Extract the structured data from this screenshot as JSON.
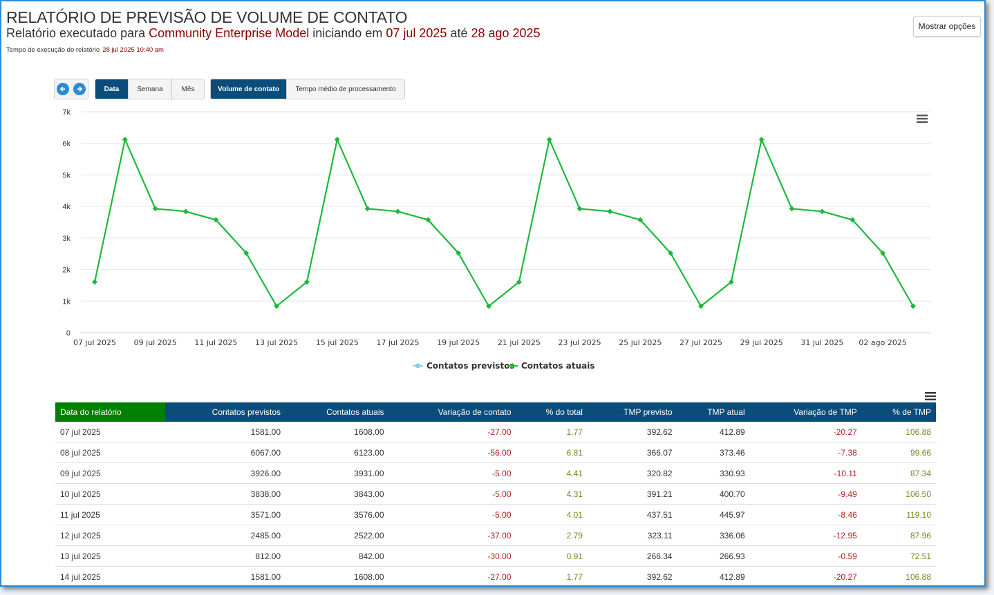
{
  "header": {
    "title": "RELATÓRIO DE PREVISÃO DE VOLUME DE CONTATO",
    "subtitle_prefix": "Relatório executado para",
    "model": "Community Enterprise Model",
    "subtitle_mid": "iniciando em",
    "start_date": "07 jul 2025",
    "subtitle_until": "até",
    "end_date": "28 ago 2025",
    "exec_label": "Tempo de execução do relatório",
    "exec_time": "28 jul 2025 10:40 am",
    "options_button": "Mostrar opções"
  },
  "controls": {
    "prev_icon": "arrow-left-icon",
    "next_icon": "arrow-right-icon",
    "granularity": [
      "Data",
      "Semana",
      "Mês"
    ],
    "granularity_selected": "Data",
    "metrics": [
      "Volume de contato",
      "Tempo médio de processamento"
    ],
    "metric_selected": "Volume de contato"
  },
  "colors": {
    "accent": "#0a4d7a",
    "first_header": "#008000",
    "series_actual": "#1db83a",
    "series_forecast": "#8ecbf0",
    "negative": "#b22222",
    "positive": "#6b8e23"
  },
  "chart_data": {
    "type": "line",
    "title": "",
    "xlabel": "",
    "ylabel": "",
    "ylim": [
      0,
      7000
    ],
    "y_ticks": [
      "0",
      "1k",
      "2k",
      "3k",
      "4k",
      "5k",
      "6k",
      "7k"
    ],
    "x_ticks": [
      "07 jul 2025",
      "09 jul 2025",
      "11 jul 2025",
      "13 jul 2025",
      "15 jul 2025",
      "17 jul 2025",
      "19 jul 2025",
      "21 jul 2025",
      "23 jul 2025",
      "25 jul 2025",
      "27 jul 2025",
      "29 jul 2025",
      "31 jul 2025",
      "02 ago 2025"
    ],
    "x_dates": [
      "07 jul",
      "08 jul",
      "09 jul",
      "10 jul",
      "11 jul",
      "12 jul",
      "13 jul",
      "14 jul",
      "15 jul",
      "16 jul",
      "17 jul",
      "18 jul",
      "19 jul",
      "20 jul",
      "21 jul",
      "22 jul",
      "23 jul",
      "24 jul",
      "25 jul",
      "26 jul",
      "27 jul",
      "28 jul",
      "29 jul",
      "30 jul",
      "31 jul",
      "01 ago",
      "02 ago",
      "03 ago"
    ],
    "series": [
      {
        "name": "Contatos previstos",
        "values": [
          1581,
          6067,
          3926,
          3838,
          3571,
          2485,
          812,
          1581,
          6067,
          3926,
          3838,
          3571,
          2485,
          812,
          1581,
          6067,
          3926,
          3838,
          3571,
          2485,
          812,
          1581,
          6067,
          3926,
          3838,
          3571,
          2485,
          812
        ]
      },
      {
        "name": "Contatos atuais",
        "values": [
          1608,
          6123,
          3931,
          3843,
          3576,
          2522,
          842,
          1608,
          6123,
          3931,
          3843,
          3576,
          2522,
          842,
          1608,
          6123,
          3931,
          3843,
          3576,
          2522,
          842,
          1608,
          6123,
          3931,
          3843,
          3576,
          2522,
          842
        ]
      }
    ],
    "legend_position": "bottom-center",
    "grid": true
  },
  "table": {
    "columns": [
      "Data do relatório",
      "Contatos previstos",
      "Contatos atuais",
      "Variação de contato",
      "% do total",
      "TMP previsto",
      "TMP atual",
      "Variação de TMP",
      "% de TMP"
    ],
    "rows": [
      [
        "07 jul 2025",
        "1581.00",
        "1608.00",
        "-27.00",
        "1.77",
        "392.62",
        "412.89",
        "-20.27",
        "106.88"
      ],
      [
        "08 jul 2025",
        "6067.00",
        "6123.00",
        "-56.00",
        "6.81",
        "366.07",
        "373.46",
        "-7.38",
        "99.66"
      ],
      [
        "09 jul 2025",
        "3926.00",
        "3931.00",
        "-5.00",
        "4.41",
        "320.82",
        "330.93",
        "-10.11",
        "87.34"
      ],
      [
        "10 jul 2025",
        "3838.00",
        "3843.00",
        "-5.00",
        "4.31",
        "391.21",
        "400.70",
        "-9.49",
        "106.50"
      ],
      [
        "11 jul 2025",
        "3571.00",
        "3576.00",
        "-5.00",
        "4.01",
        "437.51",
        "445.97",
        "-8.46",
        "119.10"
      ],
      [
        "12 jul 2025",
        "2485.00",
        "2522.00",
        "-37.00",
        "2.79",
        "323.11",
        "336.06",
        "-12.95",
        "87.96"
      ],
      [
        "13 jul 2025",
        "812.00",
        "842.00",
        "-30.00",
        "0.91",
        "266.34",
        "266.93",
        "-0.59",
        "72.51"
      ],
      [
        "14 jul 2025",
        "1581.00",
        "1608.00",
        "-27.00",
        "1.77",
        "392.62",
        "412.89",
        "-20.27",
        "106.88"
      ]
    ]
  }
}
